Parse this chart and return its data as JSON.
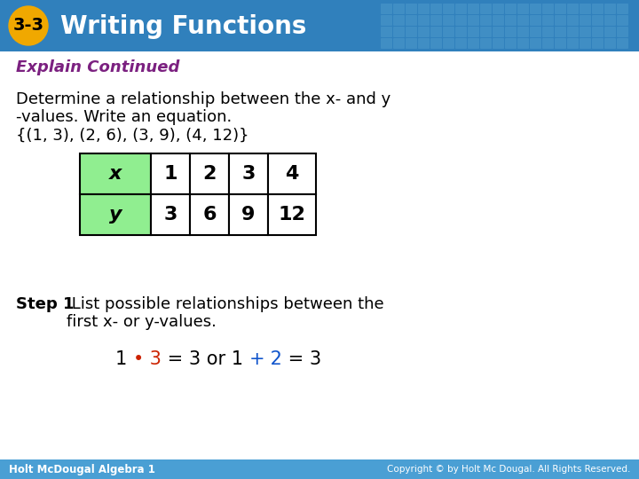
{
  "title_number": "3-3",
  "title_text": "Writing Functions",
  "subtitle": "Explain Continued",
  "main_text_line1": "Determine a relationship between the x- and y",
  "main_text_line2": "-values. Write an equation.",
  "main_text_line3": "{(1, 3), (2, 6), (3, 9), (4, 12)}",
  "table_x_vals": [
    "x",
    "1",
    "2",
    "3",
    "4"
  ],
  "table_y_vals": [
    "y",
    "3",
    "6",
    "9",
    "12"
  ],
  "footer_left": "Holt McDougal Algebra 1",
  "footer_right": "Copyright © by Holt Mc Dougal. All Rights Reserved.",
  "header_bg_color": "#3080bc",
  "header_grid_color": "#60aad5",
  "title_num_bg": "#f0a800",
  "title_num_color": "#000000",
  "title_text_color": "#ffffff",
  "subtitle_color": "#7b2080",
  "body_bg_color": "#ffffff",
  "table_header_bg": "#90ee90",
  "table_border_color": "#000000",
  "footer_bg_color": "#4a9fd4",
  "footer_text_color": "#ffffff",
  "body_text_color": "#000000"
}
